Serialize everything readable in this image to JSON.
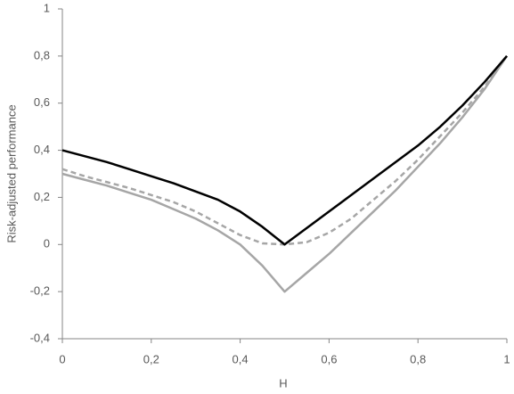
{
  "chart_data": {
    "type": "line",
    "xlabel": "H",
    "ylabel": "Risk-adjusted performance",
    "x": [
      0,
      0.05,
      0.1,
      0.15,
      0.2,
      0.25,
      0.3,
      0.35,
      0.4,
      0.45,
      0.5,
      0.55,
      0.6,
      0.65,
      0.7,
      0.75,
      0.8,
      0.85,
      0.9,
      0.95,
      1
    ],
    "series": [
      {
        "color": "#a6a6a6",
        "dash": "6,4",
        "values": [
          0.32,
          0.29,
          0.265,
          0.24,
          0.21,
          0.18,
          0.14,
          0.09,
          0.04,
          0.005,
          0,
          0.01,
          0.05,
          0.11,
          0.19,
          0.27,
          0.36,
          0.46,
          0.56,
          0.67,
          0.8
        ]
      },
      {
        "color": "#a6a6a6",
        "values": [
          0.3,
          0.275,
          0.25,
          0.22,
          0.19,
          0.15,
          0.11,
          0.06,
          0.0,
          -0.09,
          -0.2,
          -0.12,
          -0.04,
          0.05,
          0.14,
          0.23,
          0.33,
          0.43,
          0.54,
          0.66,
          0.8
        ]
      },
      {
        "color": "#000000",
        "values": [
          0.4,
          0.375,
          0.35,
          0.32,
          0.29,
          0.26,
          0.225,
          0.19,
          0.14,
          0.075,
          0.0,
          0.07,
          0.14,
          0.21,
          0.28,
          0.35,
          0.42,
          0.5,
          0.59,
          0.69,
          0.8
        ]
      }
    ],
    "xlim": [
      0,
      1
    ],
    "ylim": [
      -0.4,
      1
    ],
    "xticks": [
      0,
      {
        "value": 0.2,
        "label": "0,2"
      },
      {
        "value": 0.4,
        "label": "0,4"
      },
      {
        "value": 0.6,
        "label": "0,6"
      },
      {
        "value": 0.8,
        "label": "0,8"
      },
      1
    ],
    "yticks": [
      {
        "value": -0.4,
        "label": "-0,4"
      },
      {
        "value": -0.2,
        "label": "-0,2"
      },
      0,
      {
        "value": 0.2,
        "label": "0,2"
      },
      {
        "value": 0.4,
        "label": "0,4"
      },
      {
        "value": 0.6,
        "label": "0,6"
      },
      {
        "value": 0.8,
        "label": "0,8"
      },
      1
    ]
  }
}
